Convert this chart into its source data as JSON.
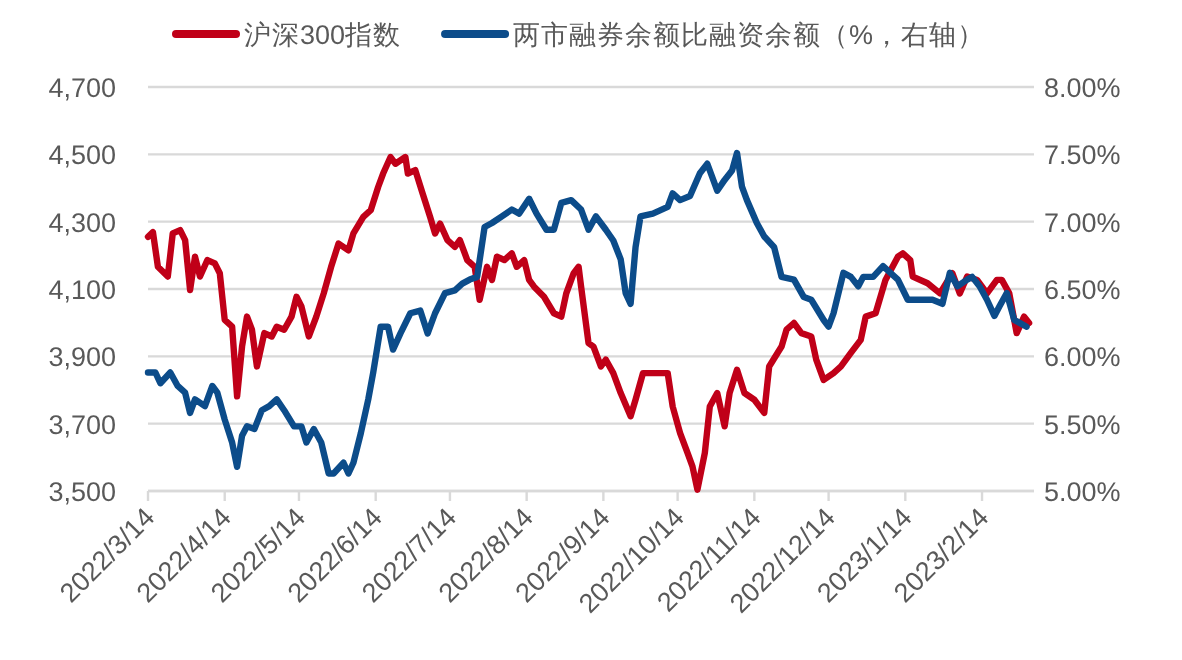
{
  "chart_data": {
    "type": "line",
    "xlim": [
      "2022-03-14",
      "2023-03-07"
    ],
    "xticks": [
      {
        "value": "2022-03-14",
        "label": "2022/3/14"
      },
      {
        "value": "2022-04-14",
        "label": "2022/4/14"
      },
      {
        "value": "2022-05-14",
        "label": "2022/5/14"
      },
      {
        "value": "2022-06-14",
        "label": "2022/6/14"
      },
      {
        "value": "2022-07-14",
        "label": "2022/7/14"
      },
      {
        "value": "2022-08-14",
        "label": "2022/8/14"
      },
      {
        "value": "2022-09-14",
        "label": "2022/9/14"
      },
      {
        "value": "2022-10-14",
        "label": "2022/10/14"
      },
      {
        "value": "2022-11-14",
        "label": "2022/11/14"
      },
      {
        "value": "2022-12-14",
        "label": "2022/12/14"
      },
      {
        "value": "2023-01-14",
        "label": "2023/1/14"
      },
      {
        "value": "2023-02-14",
        "label": "2023/2/14"
      }
    ],
    "ylim": [
      3500,
      4700
    ],
    "yticks": [
      {
        "value": 3500,
        "label": "3,500"
      },
      {
        "value": 3700,
        "label": "3,700"
      },
      {
        "value": 3900,
        "label": "3,900"
      },
      {
        "value": 4100,
        "label": "4,100"
      },
      {
        "value": 4300,
        "label": "4,300"
      },
      {
        "value": 4500,
        "label": "4,500"
      },
      {
        "value": 4700,
        "label": "4,700"
      }
    ],
    "y2lim": [
      5,
      8
    ],
    "y2ticks": [
      {
        "value": 5,
        "label": "5.00%"
      },
      {
        "value": 5.5,
        "label": "5.50%"
      },
      {
        "value": 6,
        "label": "6.00%"
      },
      {
        "value": 6.5,
        "label": "6.50%"
      },
      {
        "value": 7,
        "label": "7.00%"
      },
      {
        "value": 7.5,
        "label": "7.50%"
      },
      {
        "value": 8,
        "label": "8.00%"
      }
    ],
    "grid": "y",
    "legend": "top",
    "series": [
      {
        "name": "沪深300指数",
        "color": "#c00018",
        "x": [
          "2022-03-14",
          "2022-03-16",
          "2022-03-18",
          "2022-03-22",
          "2022-03-24",
          "2022-03-27",
          "2022-03-29",
          "2022-03-31",
          "2022-04-02",
          "2022-04-04",
          "2022-04-07",
          "2022-04-10",
          "2022-04-12",
          "2022-04-14",
          "2022-04-17",
          "2022-04-19",
          "2022-04-21",
          "2022-04-23",
          "2022-04-25",
          "2022-04-27",
          "2022-04-30",
          "2022-05-03",
          "2022-05-05",
          "2022-05-08",
          "2022-05-11",
          "2022-05-13",
          "2022-05-15",
          "2022-05-18",
          "2022-05-21",
          "2022-05-24",
          "2022-05-27",
          "2022-05-30",
          "2022-06-03",
          "2022-06-05",
          "2022-06-09",
          "2022-06-12",
          "2022-06-15",
          "2022-06-17",
          "2022-06-20",
          "2022-06-22",
          "2022-06-26",
          "2022-06-27",
          "2022-06-30",
          "2022-07-03",
          "2022-07-06",
          "2022-07-08",
          "2022-07-10",
          "2022-07-13",
          "2022-07-16",
          "2022-07-18",
          "2022-07-21",
          "2022-07-24",
          "2022-07-26",
          "2022-07-29",
          "2022-07-31",
          "2022-08-02",
          "2022-08-05",
          "2022-08-08",
          "2022-08-10",
          "2022-08-13",
          "2022-08-15",
          "2022-08-17",
          "2022-08-21",
          "2022-08-25",
          "2022-08-28",
          "2022-08-30",
          "2022-09-02",
          "2022-09-04",
          "2022-09-05",
          "2022-09-08",
          "2022-09-10",
          "2022-09-13",
          "2022-09-15",
          "2022-09-18",
          "2022-09-21",
          "2022-09-25",
          "2022-09-27",
          "2022-09-30",
          "2022-10-04",
          "2022-10-10",
          "2022-10-12",
          "2022-10-15",
          "2022-10-18",
          "2022-10-20",
          "2022-10-22",
          "2022-10-25",
          "2022-10-27",
          "2022-10-30",
          "2022-11-02",
          "2022-11-04",
          "2022-11-07",
          "2022-11-10",
          "2022-11-14",
          "2022-11-18",
          "2022-11-20",
          "2022-11-25",
          "2022-11-27",
          "2022-11-30",
          "2022-12-03",
          "2022-12-07",
          "2022-12-09",
          "2022-12-12",
          "2022-12-16",
          "2022-12-19",
          "2022-12-23",
          "2022-12-27",
          "2022-12-29",
          "2023-01-02",
          "2023-01-06",
          "2023-01-11",
          "2023-01-13",
          "2023-01-16",
          "2023-01-17",
          "2023-01-23",
          "2023-01-28",
          "2023-02-02",
          "2023-02-05",
          "2023-02-08",
          "2023-02-12",
          "2023-02-16",
          "2023-02-20",
          "2023-02-22",
          "2023-02-25",
          "2023-02-28",
          "2023-03-03",
          "2023-03-05"
        ],
        "values": [
          4255,
          4269,
          4166,
          4137,
          4265,
          4275,
          4245,
          4097,
          4196,
          4137,
          4186,
          4176,
          4147,
          4008,
          3988,
          3781,
          3929,
          4018,
          3979,
          3870,
          3969,
          3959,
          3988,
          3979,
          4018,
          4077,
          4048,
          3959,
          4018,
          4087,
          4166,
          4235,
          4215,
          4265,
          4314,
          4334,
          4403,
          4443,
          4492,
          4472,
          4492,
          4443,
          4453,
          4383,
          4314,
          4265,
          4294,
          4245,
          4225,
          4245,
          4186,
          4166,
          4068,
          4166,
          4127,
          4196,
          4186,
          4206,
          4166,
          4186,
          4127,
          4107,
          4077,
          4028,
          4018,
          4087,
          4147,
          4166,
          4107,
          3939,
          3929,
          3870,
          3890,
          3850,
          3791,
          3722,
          3771,
          3850,
          3850,
          3850,
          3751,
          3672,
          3613,
          3573,
          3504,
          3613,
          3751,
          3791,
          3692,
          3791,
          3860,
          3791,
          3771,
          3732,
          3870,
          3929,
          3979,
          3999,
          3969,
          3959,
          3890,
          3830,
          3850,
          3870,
          3910,
          3949,
          4018,
          4028,
          4127,
          4196,
          4206,
          4186,
          4137,
          4117,
          4087,
          4147,
          4087,
          4137,
          4127,
          4087,
          4127,
          4127,
          4087,
          3969,
          4018,
          3999
        ]
      },
      {
        "name": "两市融券余额比融资余额（%，右轴）",
        "color": "#0c4c8a",
        "axis": "y2",
        "x": [
          "2022-03-14",
          "2022-03-17",
          "2022-03-19",
          "2022-03-23",
          "2022-03-26",
          "2022-03-29",
          "2022-03-31",
          "2022-04-02",
          "2022-04-06",
          "2022-04-09",
          "2022-04-11",
          "2022-04-14",
          "2022-04-17",
          "2022-04-19",
          "2022-04-21",
          "2022-04-23",
          "2022-04-26",
          "2022-04-29",
          "2022-05-02",
          "2022-05-05",
          "2022-05-08",
          "2022-05-12",
          "2022-05-15",
          "2022-05-17",
          "2022-05-20",
          "2022-05-23",
          "2022-05-26",
          "2022-05-28",
          "2022-06-01",
          "2022-06-03",
          "2022-06-05",
          "2022-06-08",
          "2022-06-11",
          "2022-06-13",
          "2022-06-16",
          "2022-06-19",
          "2022-06-21",
          "2022-06-24",
          "2022-06-28",
          "2022-07-02",
          "2022-07-05",
          "2022-07-08",
          "2022-07-12",
          "2022-07-16",
          "2022-07-19",
          "2022-07-22",
          "2022-07-25",
          "2022-07-28",
          "2022-07-31",
          "2022-08-04",
          "2022-08-08",
          "2022-08-11",
          "2022-08-15",
          "2022-08-18",
          "2022-08-22",
          "2022-08-25",
          "2022-08-28",
          "2022-09-01",
          "2022-09-05",
          "2022-09-08",
          "2022-09-11",
          "2022-09-15",
          "2022-09-18",
          "2022-09-21",
          "2022-09-23",
          "2022-09-25",
          "2022-09-27",
          "2022-09-29",
          "2022-10-04",
          "2022-10-10",
          "2022-10-12",
          "2022-10-15",
          "2022-10-19",
          "2022-10-23",
          "2022-10-26",
          "2022-10-30",
          "2022-11-02",
          "2022-11-05",
          "2022-11-07",
          "2022-11-09",
          "2022-11-11",
          "2022-11-15",
          "2022-11-18",
          "2022-11-22",
          "2022-11-25",
          "2022-11-30",
          "2022-12-04",
          "2022-12-07",
          "2022-12-12",
          "2022-12-14",
          "2022-12-16",
          "2022-12-20",
          "2022-12-23",
          "2022-12-26",
          "2022-12-28",
          "2023-01-01",
          "2023-01-05",
          "2023-01-08",
          "2023-01-11",
          "2023-01-15",
          "2023-01-17",
          "2023-01-25",
          "2023-01-29",
          "2023-02-01",
          "2023-02-04",
          "2023-02-08",
          "2023-02-10",
          "2023-02-13",
          "2023-02-16",
          "2023-02-19",
          "2023-02-21",
          "2023-02-24",
          "2023-02-27",
          "2023-03-01",
          "2023-03-04"
        ],
        "values": [
          5.88,
          5.88,
          5.8,
          5.88,
          5.78,
          5.73,
          5.58,
          5.68,
          5.63,
          5.78,
          5.73,
          5.53,
          5.36,
          5.18,
          5.41,
          5.48,
          5.46,
          5.6,
          5.63,
          5.68,
          5.6,
          5.48,
          5.48,
          5.36,
          5.46,
          5.36,
          5.13,
          5.13,
          5.21,
          5.13,
          5.21,
          5.43,
          5.68,
          5.88,
          6.22,
          6.22,
          6.05,
          6.17,
          6.32,
          6.34,
          6.17,
          6.32,
          6.47,
          6.49,
          6.54,
          6.57,
          6.59,
          6.96,
          6.99,
          7.04,
          7.09,
          7.06,
          7.17,
          7.06,
          6.94,
          6.94,
          7.14,
          7.16,
          7.09,
          6.94,
          7.04,
          6.94,
          6.86,
          6.72,
          6.47,
          6.39,
          6.81,
          7.04,
          7.06,
          7.11,
          7.21,
          7.16,
          7.19,
          7.36,
          7.43,
          7.23,
          7.31,
          7.38,
          7.51,
          7.26,
          7.16,
          6.99,
          6.89,
          6.81,
          6.59,
          6.57,
          6.44,
          6.42,
          6.27,
          6.22,
          6.32,
          6.62,
          6.59,
          6.52,
          6.59,
          6.59,
          6.67,
          6.62,
          6.57,
          6.42,
          6.42,
          6.42,
          6.39,
          6.62,
          6.52,
          6.57,
          6.59,
          6.52,
          6.42,
          6.3,
          6.37,
          6.47,
          6.27,
          6.25,
          6.22
        ]
      }
    ]
  }
}
